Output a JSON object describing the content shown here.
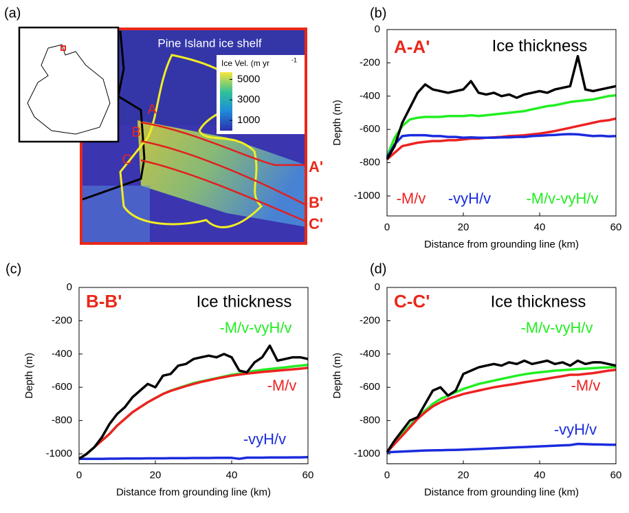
{
  "chart_data": [
    {
      "type": "map",
      "panel_label": "(a)",
      "title": "Pine Island ice shelf",
      "colorbar": {
        "label": "Ice Vel. (m yr",
        "label_superscript": "-1",
        "lim": [
          0,
          5700
        ],
        "ticks": [
          5000,
          3000,
          1000
        ]
      },
      "profile_labels": [
        "A",
        "B",
        "C"
      ],
      "profile_end_labels": [
        "A'",
        "B'",
        "C'"
      ]
    },
    {
      "type": "line",
      "panel_label": "(b)",
      "title": "A-A'",
      "xlabel": "Distance from grounding line (km)",
      "ylabel": "Depth (m)",
      "xlim": [
        0,
        60
      ],
      "xticks": [
        0,
        20,
        40,
        60
      ],
      "ylim": [
        -1120,
        0
      ],
      "yticks": [
        0,
        -200,
        -400,
        -600,
        -800,
        -1000
      ],
      "x": [
        0,
        2,
        4,
        6,
        8,
        10,
        12,
        14,
        16,
        18,
        20,
        22,
        24,
        26,
        28,
        30,
        32,
        34,
        36,
        38,
        40,
        42,
        44,
        46,
        48,
        50,
        52,
        54,
        56,
        58,
        60
      ],
      "series": [
        {
          "name": "Ice thickness",
          "color": "#000000",
          "values": [
            -780,
            -700,
            -560,
            -470,
            -380,
            -330,
            -360,
            -370,
            -380,
            -370,
            -360,
            -310,
            -380,
            -390,
            -380,
            -400,
            -390,
            -410,
            -390,
            -380,
            -370,
            -380,
            -360,
            -350,
            -340,
            -160,
            -360,
            -370,
            -360,
            -350,
            -340
          ]
        },
        {
          "name": "-M/v",
          "color": "#ee2222",
          "values": [
            -780,
            -740,
            -700,
            -690,
            -680,
            -675,
            -670,
            -670,
            -665,
            -665,
            -660,
            -655,
            -655,
            -650,
            -648,
            -645,
            -640,
            -638,
            -635,
            -630,
            -625,
            -618,
            -610,
            -600,
            -590,
            -580,
            -570,
            -560,
            -550,
            -545,
            -535
          ]
        },
        {
          "name": "-vyH/v",
          "color": "#1a2bdd",
          "values": [
            -770,
            -690,
            -640,
            -635,
            -635,
            -635,
            -640,
            -640,
            -645,
            -645,
            -650,
            -648,
            -650,
            -650,
            -650,
            -648,
            -648,
            -645,
            -645,
            -640,
            -638,
            -635,
            -633,
            -630,
            -628,
            -630,
            -635,
            -640,
            -638,
            -642,
            -640
          ]
        },
        {
          "name": "-M/v-vyH/v",
          "color": "#22ee22",
          "values": [
            -760,
            -650,
            -580,
            -540,
            -530,
            -525,
            -525,
            -525,
            -520,
            -520,
            -520,
            -515,
            -520,
            -515,
            -510,
            -505,
            -500,
            -495,
            -490,
            -480,
            -470,
            -460,
            -455,
            -445,
            -435,
            -430,
            -425,
            -420,
            -410,
            -400,
            -395
          ]
        }
      ]
    },
    {
      "type": "line",
      "panel_label": "(c)",
      "title": "B-B'",
      "xlabel": "Distance from grounding line (km)",
      "ylabel": "Depth (m)",
      "xlim": [
        0,
        60
      ],
      "xticks": [
        0,
        20,
        40,
        60
      ],
      "ylim": [
        -1060,
        0
      ],
      "yticks": [
        0,
        -200,
        -400,
        -600,
        -800,
        -1000
      ],
      "x": [
        0,
        2,
        4,
        6,
        8,
        10,
        12,
        14,
        16,
        18,
        20,
        22,
        24,
        26,
        28,
        30,
        32,
        34,
        36,
        38,
        40,
        42,
        44,
        46,
        48,
        50,
        52,
        54,
        56,
        58,
        60
      ],
      "series": [
        {
          "name": "Ice thickness",
          "color": "#000000",
          "values": [
            -1030,
            -1000,
            -960,
            -900,
            -820,
            -760,
            -720,
            -660,
            -620,
            -580,
            -600,
            -530,
            -520,
            -470,
            -460,
            -430,
            -420,
            -410,
            -420,
            -400,
            -420,
            -500,
            -510,
            -450,
            -420,
            -350,
            -440,
            -430,
            -420,
            -420,
            -430
          ]
        },
        {
          "name": "-M/v",
          "color": "#ee2222",
          "values": [
            -1030,
            -1000,
            -960,
            -920,
            -880,
            -830,
            -790,
            -750,
            -720,
            -690,
            -665,
            -640,
            -622,
            -607,
            -593,
            -580,
            -568,
            -558,
            -548,
            -539,
            -530,
            -524,
            -518,
            -513,
            -508,
            -504,
            -500,
            -496,
            -492,
            -488,
            -483
          ]
        },
        {
          "name": "-vyH/v",
          "color": "#1a2bdd",
          "values": [
            -1030,
            -1030,
            -1030,
            -1030,
            -1029,
            -1029,
            -1028,
            -1028,
            -1028,
            -1027,
            -1027,
            -1027,
            -1026,
            -1026,
            -1026,
            -1025,
            -1025,
            -1025,
            -1024,
            -1024,
            -1024,
            -1030,
            -1023,
            -1023,
            -1023,
            -1022,
            -1022,
            -1022,
            -1021,
            -1021,
            -1020
          ]
        },
        {
          "name": "-M/v-vyH/v",
          "color": "#22ee22",
          "values": [
            -1030,
            -1000,
            -960,
            -920,
            -880,
            -830,
            -790,
            -750,
            -720,
            -690,
            -665,
            -640,
            -620,
            -605,
            -590,
            -575,
            -565,
            -555,
            -545,
            -535,
            -525,
            -518,
            -510,
            -502,
            -495,
            -490,
            -485,
            -480,
            -475,
            -470,
            -465
          ]
        }
      ]
    },
    {
      "type": "line",
      "panel_label": "(d)",
      "title": "C-C'",
      "xlabel": "Distance from grounding line (km)",
      "ylabel": "Depth (m)",
      "xlim": [
        0,
        60
      ],
      "xticks": [
        0,
        20,
        40,
        60
      ],
      "ylim": [
        -1060,
        0
      ],
      "yticks": [
        0,
        -200,
        -400,
        -600,
        -800,
        -1000
      ],
      "x": [
        0,
        2,
        4,
        6,
        8,
        10,
        12,
        14,
        16,
        18,
        20,
        22,
        24,
        26,
        28,
        30,
        32,
        34,
        36,
        38,
        40,
        42,
        44,
        46,
        48,
        50,
        52,
        54,
        56,
        58,
        60
      ],
      "series": [
        {
          "name": "Ice thickness",
          "color": "#000000",
          "values": [
            -990,
            -920,
            -860,
            -800,
            -780,
            -700,
            -620,
            -600,
            -650,
            -620,
            -520,
            -500,
            -480,
            -470,
            -460,
            -470,
            -450,
            -460,
            -440,
            -460,
            -450,
            -440,
            -460,
            -450,
            -470,
            -440,
            -460,
            -450,
            -450,
            -460,
            -470
          ]
        },
        {
          "name": "-M/v",
          "color": "#ee2222",
          "values": [
            -990,
            -940,
            -890,
            -840,
            -790,
            -750,
            -715,
            -690,
            -670,
            -655,
            -640,
            -630,
            -620,
            -610,
            -600,
            -592,
            -585,
            -578,
            -570,
            -563,
            -556,
            -548,
            -540,
            -533,
            -525,
            -525,
            -520,
            -515,
            -508,
            -500,
            -495
          ]
        },
        {
          "name": "-vyH/v",
          "color": "#1a2bdd",
          "values": [
            -990,
            -988,
            -986,
            -984,
            -982,
            -980,
            -979,
            -978,
            -977,
            -976,
            -975,
            -973,
            -971,
            -969,
            -967,
            -965,
            -963,
            -961,
            -959,
            -957,
            -955,
            -953,
            -951,
            -949,
            -947,
            -940,
            -942,
            -943,
            -944,
            -945,
            -945
          ]
        },
        {
          "name": "-M/v-vyH/v",
          "color": "#22ee22",
          "values": [
            -990,
            -930,
            -880,
            -830,
            -780,
            -740,
            -700,
            -670,
            -650,
            -630,
            -610,
            -595,
            -580,
            -570,
            -560,
            -550,
            -540,
            -530,
            -522,
            -515,
            -510,
            -505,
            -500,
            -497,
            -494,
            -490,
            -488,
            -485,
            -482,
            -480,
            -478
          ]
        }
      ]
    }
  ]
}
